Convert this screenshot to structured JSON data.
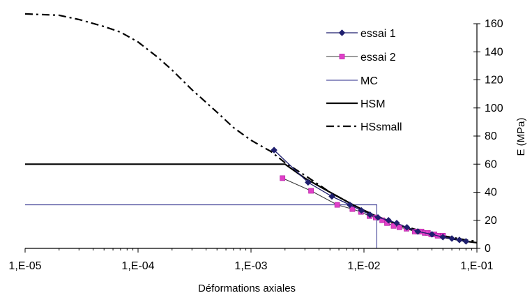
{
  "chart_data": {
    "type": "line",
    "title": "",
    "xlabel": "Déformations axiales",
    "ylabel": "E (MPa)",
    "x_scale": "log",
    "xlim": [
      1e-05,
      0.1
    ],
    "ylim": [
      0,
      160
    ],
    "x_tick_values": [
      1e-05,
      0.0001,
      0.001,
      0.01,
      0.1
    ],
    "x_tick_labels": [
      "1,E-05",
      "1,E-04",
      "1,E-03",
      "1,E-02",
      "1,E-01"
    ],
    "y_ticks": [
      0,
      20,
      40,
      60,
      80,
      100,
      120,
      140,
      160
    ],
    "y_axis_side": "right",
    "grid": false,
    "legend_position": "top-right",
    "series": [
      {
        "name": "essai 1",
        "style": "line-diamond",
        "color": "#1f1f6e",
        "x": [
          0.0016,
          0.0032,
          0.0052,
          0.0075,
          0.0095,
          0.0113,
          0.0133,
          0.0165,
          0.0195,
          0.024,
          0.03,
          0.04,
          0.05,
          0.06,
          0.07,
          0.08
        ],
        "y": [
          70,
          47,
          37,
          31,
          27,
          24,
          22,
          20,
          18,
          15,
          12,
          10,
          8,
          7,
          6,
          5
        ]
      },
      {
        "name": "essai 2",
        "style": "line-square",
        "color": "#e040c8",
        "x": [
          0.0019,
          0.0034,
          0.0058,
          0.0079,
          0.0094,
          0.0112,
          0.0127,
          0.0145,
          0.016,
          0.0183,
          0.0206,
          0.0238,
          0.0282,
          0.0302,
          0.0323,
          0.0345,
          0.0368,
          0.0394,
          0.0421,
          0.0449,
          0.05
        ],
        "y": [
          50,
          41,
          31,
          28,
          26,
          23,
          22,
          20,
          18,
          16,
          15,
          14,
          12,
          12,
          12,
          11,
          11,
          10,
          10,
          9,
          9
        ]
      },
      {
        "name": "MC",
        "style": "line-thin",
        "color": "#2a2a8a",
        "x": [
          1e-05,
          0.013,
          0.013,
          0.1
        ],
        "y": [
          31,
          31,
          0,
          0
        ]
      },
      {
        "name": "HSM",
        "style": "line-thick",
        "color": "#000000",
        "x": [
          1e-05,
          0.002,
          0.003,
          0.005,
          0.008,
          0.012,
          0.02,
          0.03,
          0.05,
          0.08,
          0.1
        ],
        "y": [
          60,
          60,
          50,
          40,
          31,
          24,
          17,
          12,
          8,
          5,
          4
        ]
      },
      {
        "name": "HSsmall",
        "style": "dash-dot",
        "color": "#000000",
        "x": [
          1e-05,
          2e-05,
          3e-05,
          5e-05,
          7e-05,
          0.0001,
          0.00015,
          0.0002,
          0.0003,
          0.0005,
          0.0007,
          0.001,
          0.0015,
          0.002,
          0.003,
          0.005,
          0.008,
          0.012,
          0.02,
          0.03,
          0.05,
          0.08,
          0.1
        ],
        "y": [
          167,
          166,
          163,
          158,
          154,
          147,
          136,
          127,
          113,
          97,
          86,
          77,
          69,
          61,
          52,
          40,
          31,
          24,
          17,
          13,
          9,
          6,
          5
        ]
      }
    ]
  }
}
